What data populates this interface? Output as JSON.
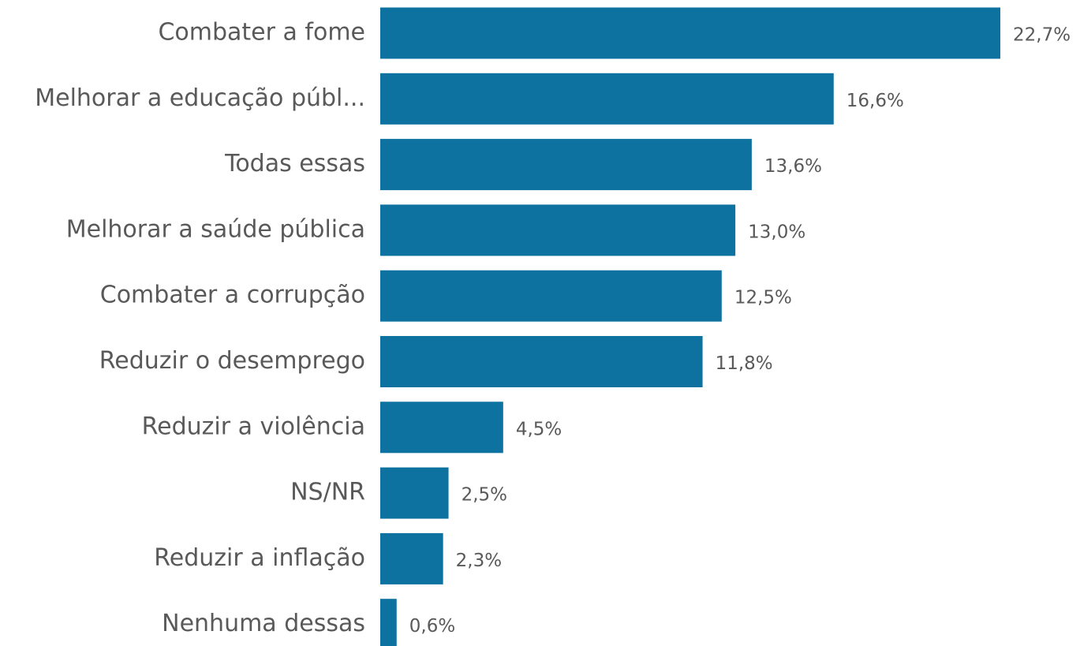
{
  "chart_data": {
    "type": "bar",
    "orientation": "horizontal",
    "color": "#0e72a1",
    "categories": [
      "Combater a fome",
      "Melhorar a educação públ...",
      "Todas essas",
      "Melhorar a saúde pública",
      "Combater a corrupção",
      "Reduzir o desemprego",
      "Reduzir a violência",
      "NS/NR",
      "Reduzir a inflação",
      "Nenhuma dessas"
    ],
    "values": [
      22.7,
      16.6,
      13.6,
      13.0,
      12.5,
      11.8,
      4.5,
      2.5,
      2.3,
      0.6
    ],
    "value_labels": [
      "22,7%",
      "16,6%",
      "13,6%",
      "13,0%",
      "12,5%",
      "11,8%",
      "4,5%",
      "2,5%",
      "2,3%",
      "0,6%"
    ]
  }
}
